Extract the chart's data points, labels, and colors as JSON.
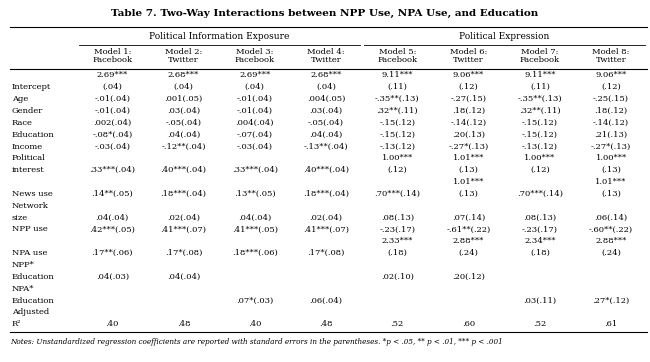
{
  "title": "Table 7. Two-Way Interactions between NPP Use, NPA Use, and Education",
  "model_labels": [
    "Model 1:\nFacebook",
    "Model 2:\nTwitter",
    "Model 3:\nFacebook",
    "Model 4:\nTwitter",
    "Model 5:\nFacebook",
    "Model 6:\nTwitter",
    "Model 7:\nFacebook",
    "Model 8:\nTwitter"
  ],
  "rows": [
    [
      "",
      "2.69***",
      "2.68***",
      "2.69***",
      "2.68***",
      "9.11***",
      "9.06***",
      "9.11***",
      "9.06***"
    ],
    [
      "Intercept",
      "(.04)",
      "(.04)",
      "(.04)",
      "(.04)",
      "(.11)",
      "(.12)",
      "(.11)",
      "(.12)"
    ],
    [
      "Age",
      "-.01(.04)",
      ".001(.05)",
      "-.01(.04)",
      ".004(.05)",
      "-.35**(.13)",
      "-.27(.15)",
      "-.35**(.13)",
      "-.25(.15)"
    ],
    [
      "Gender",
      "-.01(.04)",
      ".03(.04)",
      "-.01(.04)",
      ".03(.04)",
      ".32**(.11)",
      ".18(.12)",
      ".32**(.11)",
      ".18(.12)"
    ],
    [
      "Race",
      ".002(.04)",
      "-.05(.04)",
      ".004(.04)",
      "-.05(.04)",
      "-.15(.12)",
      "-.14(.12)",
      "-.15(.12)",
      "-.14(.12)"
    ],
    [
      "Education",
      "-.08*(.04)",
      ".04(.04)",
      "-.07(.04)",
      ".04(.04)",
      "-.15(.12)",
      ".20(.13)",
      "-.15(.12)",
      ".21(.13)"
    ],
    [
      "Income",
      "-.03(.04)",
      "-.12**(.04)",
      "-.03(.04)",
      "-.13**(.04)",
      "-.13(.12)",
      "-.27*(.13)",
      "-.13(.12)",
      "-.27*(.13)"
    ],
    [
      "Political",
      "",
      "",
      "",
      "",
      "1.00***",
      "1.01***",
      "1.00***",
      "1.00***"
    ],
    [
      "interest",
      ".33***(.04)",
      ".40***(.04)",
      ".33***(.04)",
      ".40***(.04)",
      "(.12)",
      "(.13)",
      "(.12)",
      "(.13)"
    ],
    [
      "",
      "",
      "",
      "",
      "",
      "",
      "1.01***",
      "",
      "1.01***"
    ],
    [
      "News use",
      ".14**(.05)",
      ".18***(.04)",
      ".13**(.05)",
      ".18***(.04)",
      ".70***(.14)",
      "(.13)",
      ".70***(.14)",
      "(.13)"
    ],
    [
      "Network",
      "",
      "",
      "",
      "",
      "",
      "",
      "",
      ""
    ],
    [
      "size",
      ".04(.04)",
      ".02(.04)",
      ".04(.04)",
      ".02(.04)",
      ".08(.13)",
      ".07(.14)",
      ".08(.13)",
      ".06(.14)"
    ],
    [
      "NPP use",
      ".42***(.05)",
      ".41***(.07)",
      ".41***(.05)",
      ".41***(.07)",
      "-.23(.17)",
      "-.61**(.22)",
      "-.23(.17)",
      "-.60**(.22)"
    ],
    [
      "",
      "",
      "",
      "",
      "",
      "2.33***",
      "2.88***",
      "2.34***",
      "2.88***"
    ],
    [
      "NPA use",
      ".17**(.06)",
      ".17*(.08)",
      ".18***(.06)",
      ".17*(.08)",
      "(.18)",
      "(.24)",
      "(.18)",
      "(.24)"
    ],
    [
      "NPP*",
      "",
      "",
      "",
      "",
      "",
      "",
      "",
      ""
    ],
    [
      "Education",
      ".04(.03)",
      ".04(.04)",
      "",
      "",
      ".02(.10)",
      ".20(.12)",
      "",
      ""
    ],
    [
      "NPA*",
      "",
      "",
      "",
      "",
      "",
      "",
      "",
      ""
    ],
    [
      "Education",
      "",
      "",
      ".07*(.03)",
      ".06(.04)",
      "",
      "",
      ".03(.11)",
      ".27*(.12)"
    ],
    [
      "Adjusted",
      "",
      "",
      "",
      "",
      "",
      "",
      "",
      ""
    ],
    [
      "R²",
      ".40",
      ".48",
      ".40",
      ".48",
      ".52",
      ".60",
      ".52",
      ".61"
    ]
  ],
  "notes": "Notes: Unstandardized regression coefficients are reported with standard errors in the parentheses. *p < .05, ** p < .01, *** p < .001",
  "bg_color": "#ffffff",
  "font_size": 6.0,
  "title_font_size": 7.5,
  "notes_font_size": 5.2
}
